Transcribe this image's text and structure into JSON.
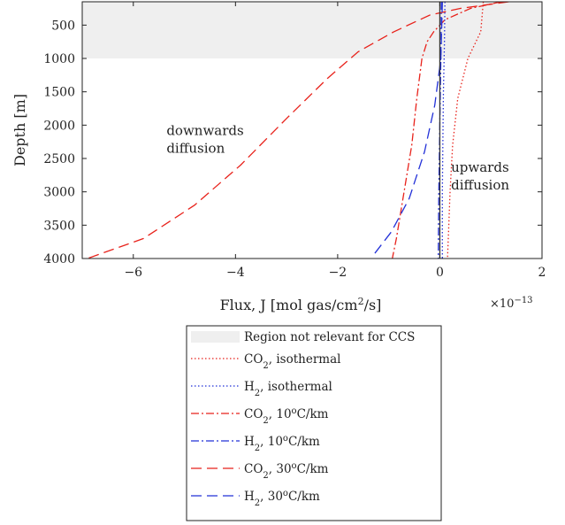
{
  "chart_data": {
    "type": "line",
    "xlabel": "Flux, J [mol gas/cm²/s]",
    "xlabel_parts": {
      "pre": "Flux, J [mol gas/cm",
      "sup": "2",
      "post": "/s]"
    },
    "ylabel": "Depth [m]",
    "x_multiplier": {
      "base": "×10",
      "exp": "−13"
    },
    "xlim": [
      -7,
      2
    ],
    "ylim": [
      4000,
      150
    ],
    "y_reversed": true,
    "xticks": [
      -6,
      -4,
      -2,
      0,
      2
    ],
    "xtick_labels": [
      "−6",
      "−4",
      "−2",
      "0",
      "2"
    ],
    "yticks": [
      500,
      1000,
      1500,
      2000,
      2500,
      3000,
      3500,
      4000
    ],
    "ytick_labels": [
      "500",
      "1000",
      "1500",
      "2000",
      "2500",
      "3000",
      "3500",
      "4000"
    ],
    "grid": false,
    "legend_position": "bottom-center",
    "shaded_region": {
      "y_from": 150,
      "y_to": 1000,
      "color": "#efefef",
      "label": "Region not relevant for CCS"
    },
    "zero_line_color": "#333333",
    "annotations": [
      {
        "lines": [
          "downwards",
          "diffusion"
        ],
        "x": -5.35,
        "y": 2150
      },
      {
        "lines": [
          "upwards",
          "diffusion"
        ],
        "x": 0.22,
        "y": 2700
      }
    ],
    "series": [
      {
        "gas": "CO",
        "sub": "2",
        "cond": ", isothermal",
        "deg": "",
        "cond_tail": "",
        "color": "#e8221b",
        "dash": "1.5,2.5",
        "points": [
          [
            0.85,
            150
          ],
          [
            0.8,
            600
          ],
          [
            0.55,
            1000
          ],
          [
            0.35,
            1600
          ],
          [
            0.25,
            2300
          ],
          [
            0.2,
            3000
          ],
          [
            0.17,
            3600
          ],
          [
            0.15,
            4000
          ]
        ]
      },
      {
        "gas": "H",
        "sub": "2",
        "cond": ", isothermal",
        "deg": "",
        "cond_tail": "",
        "color": "#2230d8",
        "dash": "1.5,2.5",
        "points": [
          [
            0.1,
            150
          ],
          [
            0.09,
            800
          ],
          [
            0.07,
            1500
          ],
          [
            0.06,
            2200
          ],
          [
            0.05,
            3000
          ],
          [
            0.05,
            4000
          ]
        ]
      },
      {
        "gas": "CO",
        "sub": "2",
        "cond": ", 10",
        "deg": "o",
        "cond_tail": "C/km",
        "color": "#e8221b",
        "dash": "9,3,2,3",
        "points": [
          [
            1.2,
            150
          ],
          [
            0.6,
            250
          ],
          [
            0.1,
            420
          ],
          [
            -0.12,
            600
          ],
          [
            -0.25,
            750
          ],
          [
            -0.35,
            1000
          ],
          [
            -0.45,
            1600
          ],
          [
            -0.55,
            2300
          ],
          [
            -0.7,
            3000
          ],
          [
            -0.85,
            3700
          ],
          [
            -0.93,
            4000
          ]
        ]
      },
      {
        "gas": "H",
        "sub": "2",
        "cond": ", 10",
        "deg": "o",
        "cond_tail": "C/km",
        "color": "#2230d8",
        "dash": "9,3,2,3",
        "points": [
          [
            0.03,
            150
          ],
          [
            0.02,
            1000
          ],
          [
            0.0,
            2000
          ],
          [
            -0.02,
            3000
          ],
          [
            -0.03,
            4000
          ]
        ]
      },
      {
        "gas": "CO",
        "sub": "2",
        "cond": ", 30",
        "deg": "o",
        "cond_tail": "C/km",
        "color": "#e8221b",
        "dash": "12,6",
        "points": [
          [
            1.35,
            150
          ],
          [
            0.4,
            250
          ],
          [
            -0.2,
            350
          ],
          [
            -0.9,
            600
          ],
          [
            -1.6,
            900
          ],
          [
            -2.2,
            1300
          ],
          [
            -3.0,
            1900
          ],
          [
            -3.9,
            2600
          ],
          [
            -4.8,
            3200
          ],
          [
            -5.8,
            3700
          ],
          [
            -6.9,
            4000
          ]
        ]
      },
      {
        "gas": "H",
        "sub": "2",
        "cond": ", 30",
        "deg": "o",
        "cond_tail": "C/km",
        "color": "#2230d8",
        "dash": "12,6",
        "points": [
          [
            0.05,
            150
          ],
          [
            0.02,
            1000
          ],
          [
            -0.1,
            1700
          ],
          [
            -0.3,
            2400
          ],
          [
            -0.6,
            3100
          ],
          [
            -0.95,
            3600
          ],
          [
            -1.3,
            3950
          ]
        ]
      }
    ]
  }
}
